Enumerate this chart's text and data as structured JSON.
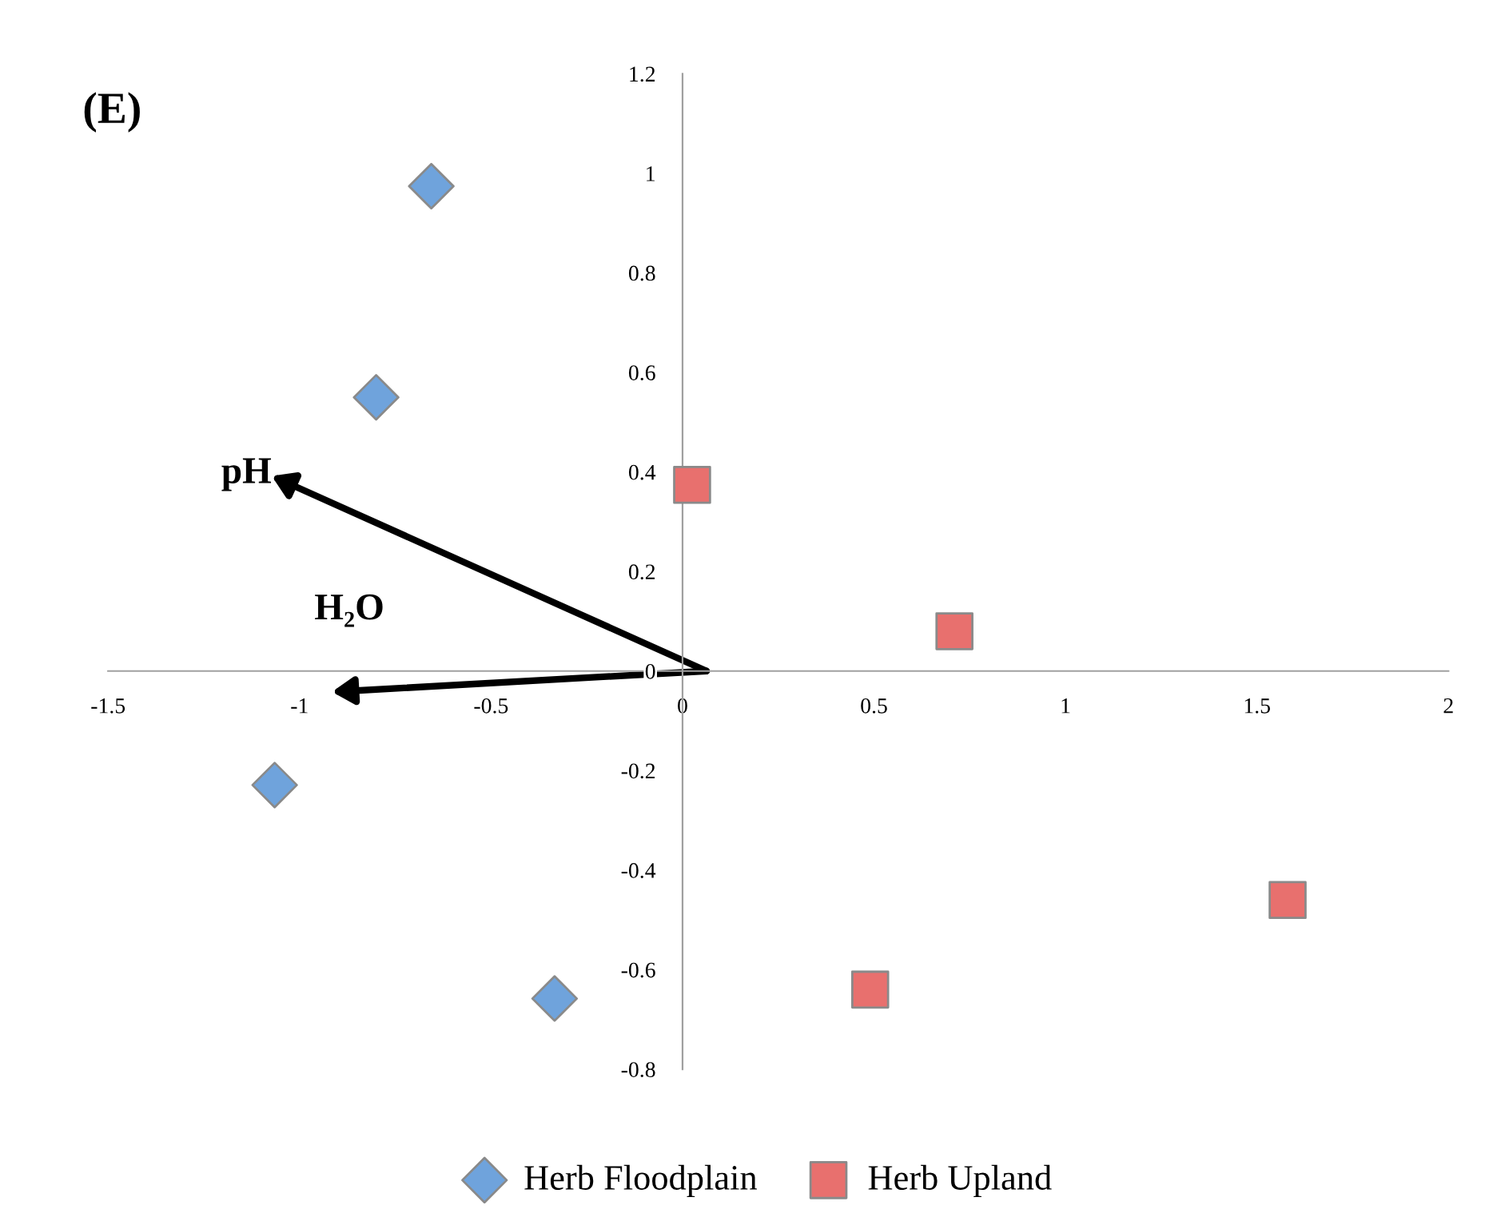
{
  "chart_data": {
    "type": "scatter",
    "series": [
      {
        "name": "Herb Floodplain",
        "color": "#6fa3dc",
        "marker": "diamond",
        "x": [
          -0.656,
          -0.8,
          -1.065,
          -0.334
        ],
        "values": [
          0.974,
          0.55,
          -0.229,
          -0.658
        ]
      },
      {
        "name": "Herb Upland",
        "color": "#e8706e",
        "marker": "square",
        "x": [
          0.025,
          0.71,
          1.58,
          0.49
        ],
        "values": [
          0.374,
          0.08,
          -0.46,
          -0.64
        ]
      }
    ],
    "xlim": [
      -1.5,
      2
    ],
    "xticks": [
      -1.5,
      -1,
      -0.5,
      0,
      0.5,
      1,
      1.5,
      2
    ],
    "ylim": [
      -0.8,
      1.2
    ],
    "yticks": [
      -0.8,
      -0.6,
      -0.4,
      -0.2,
      0,
      0.2,
      0.4,
      0.6,
      0.8,
      1,
      1.2
    ],
    "grid": false,
    "legend": "bottom",
    "annotations": [
      "(E)",
      "pH",
      "H₂O"
    ]
  }
}
